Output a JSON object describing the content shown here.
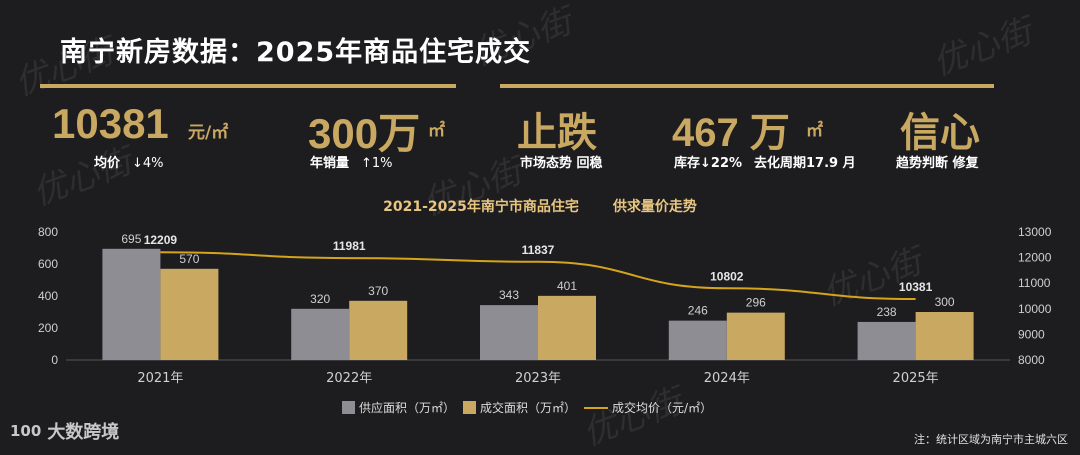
{
  "title": "南宁新房数据：2025年商品住宅成交",
  "kpis": {
    "price": {
      "value": "10381",
      "unit": "元/㎡",
      "label": "均价",
      "change": "↓4%"
    },
    "sales": {
      "value": "300万",
      "unit": "㎡",
      "label": "年销量",
      "change": "↑1%"
    },
    "market": {
      "value": "止跌",
      "label": "市场态势 回稳"
    },
    "stock": {
      "value": "467 万",
      "unit": "㎡",
      "label": "库存↓22%",
      "period": "去化周期17.9 月"
    },
    "trend": {
      "value": "信心",
      "label": "趋势判断 修复"
    }
  },
  "chart_title_left": "2021-2025年南宁市商品住宅",
  "chart_title_right": "供求量价走势",
  "chart_data": {
    "type": "bar",
    "categories": [
      "2021年",
      "2022年",
      "2023年",
      "2024年",
      "2025年"
    ],
    "series": [
      {
        "name": "供应面积（万㎡）",
        "values": [
          695,
          320,
          343,
          246,
          238
        ],
        "color": "#8e8d93",
        "axis": "left"
      },
      {
        "name": "成交面积（万㎡）",
        "values": [
          570,
          370,
          401,
          296,
          300
        ],
        "color": "#c9a862",
        "axis": "left"
      },
      {
        "name": "成交均价（元/㎡）",
        "type": "line",
        "values": [
          12209,
          11981,
          11837,
          10802,
          10381
        ],
        "color": "#d4a41c",
        "axis": "right"
      }
    ],
    "y_left": {
      "min": 0,
      "max": 800,
      "ticks": [
        0,
        200,
        400,
        600,
        800
      ]
    },
    "y_right": {
      "min": 8000,
      "max": 13000,
      "ticks": [
        8000,
        9000,
        10000,
        11000,
        12000,
        13000
      ]
    },
    "grid": false,
    "legend_position": "bottom"
  },
  "note": "注：统计区域为南宁市主城六区",
  "logo": {
    "mark": "100",
    "name": "大数跨境"
  },
  "watermark": "优心街"
}
